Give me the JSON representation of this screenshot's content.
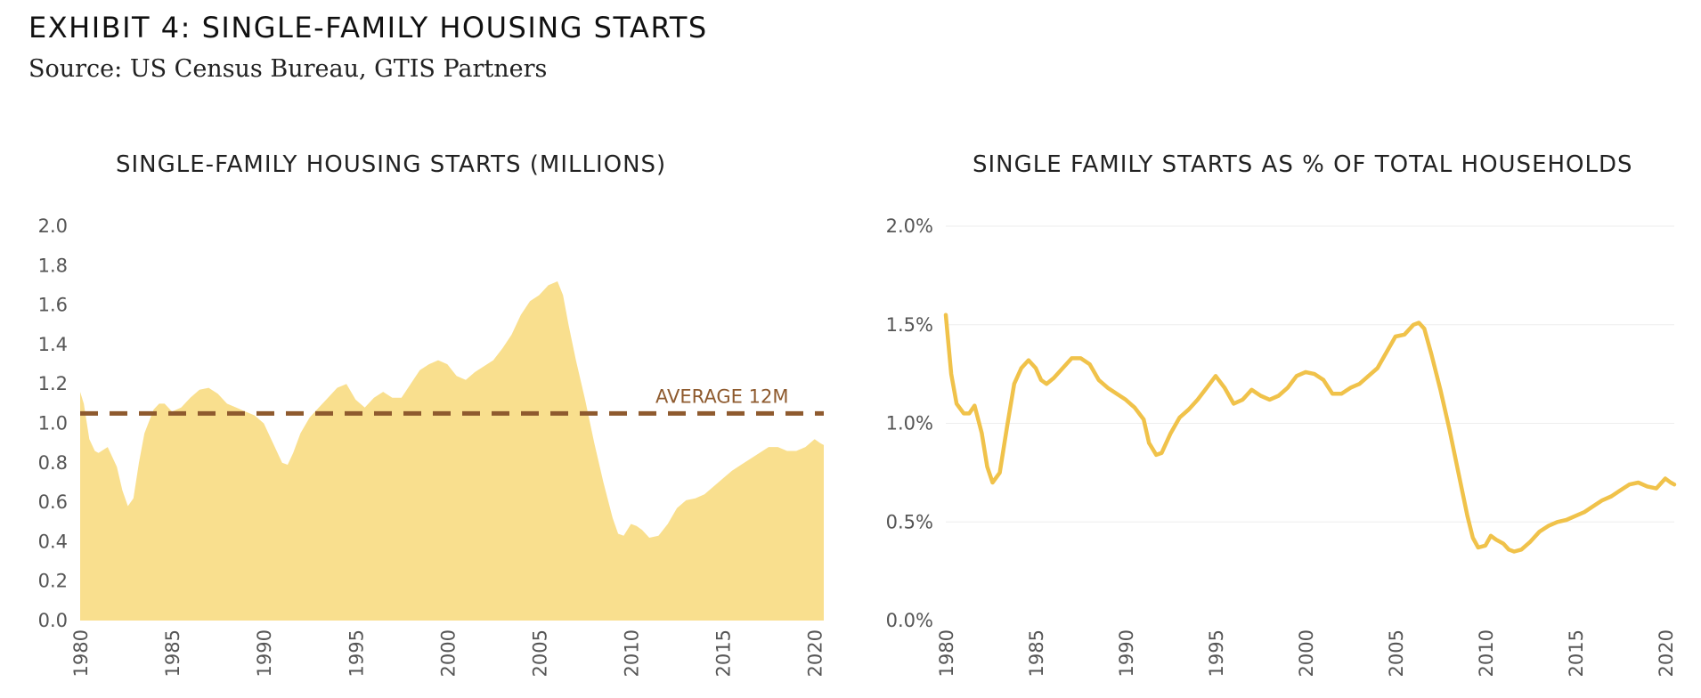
{
  "header": {
    "title": "EXHIBIT 4: SINGLE-FAMILY HOUSING STARTS",
    "source": "Source: US Census Bureau, GTIS Partners"
  },
  "colors": {
    "area_fill": "#f9df8e",
    "line": "#f0c24a",
    "average_line": "#8e5a2e",
    "grid": "#eeeeee",
    "tick_text": "#555555"
  },
  "chart_data": [
    {
      "type": "area",
      "title": "SINGLE-FAMILY HOUSING STARTS (MILLIONS)",
      "xlabel": "",
      "ylabel": "",
      "xlim": [
        1980,
        2020.5
      ],
      "ylim": [
        0,
        2.0
      ],
      "x_ticks": [
        "1980",
        "1985",
        "1990",
        "1995",
        "2000",
        "2005",
        "2010",
        "2015",
        "2020"
      ],
      "y_ticks": [
        "0.0",
        "0.2",
        "0.4",
        "0.6",
        "0.8",
        "1.0",
        "1.2",
        "1.4",
        "1.6",
        "1.8",
        "2.0"
      ],
      "grid": false,
      "reference_line": {
        "label": "AVERAGE 12M",
        "value": 1.05
      },
      "series": [
        {
          "x": [
            1980,
            1980.2,
            1980.5,
            1980.8,
            1981,
            1981.5,
            1982,
            1982.3,
            1982.6,
            1982.9,
            1983.2,
            1983.5,
            1984,
            1984.3,
            1984.6,
            1985,
            1985.5,
            1986,
            1986.5,
            1987,
            1987.5,
            1988,
            1988.5,
            1989,
            1989.5,
            1990,
            1990.5,
            1991,
            1991.3,
            1991.6,
            1992,
            1992.5,
            1993,
            1993.5,
            1994,
            1994.5,
            1995,
            1995.5,
            1996,
            1996.5,
            1997,
            1997.5,
            1998,
            1998.5,
            1999,
            1999.5,
            2000,
            2000.5,
            2001,
            2001.5,
            2002,
            2002.5,
            2003,
            2003.5,
            2004,
            2004.5,
            2005,
            2005.5,
            2006,
            2006.3,
            2006.6,
            2007,
            2007.5,
            2008,
            2008.5,
            2009,
            2009.3,
            2009.6,
            2010,
            2010.3,
            2010.6,
            2011,
            2011.5,
            2012,
            2012.5,
            2013,
            2013.5,
            2014,
            2014.5,
            2015,
            2015.5,
            2016,
            2016.5,
            2017,
            2017.5,
            2018,
            2018.5,
            2019,
            2019.5,
            2020,
            2020.3,
            2020.5
          ],
          "values": [
            1.16,
            1.1,
            0.92,
            0.86,
            0.85,
            0.88,
            0.78,
            0.66,
            0.58,
            0.62,
            0.8,
            0.95,
            1.07,
            1.1,
            1.1,
            1.06,
            1.08,
            1.13,
            1.17,
            1.18,
            1.15,
            1.1,
            1.08,
            1.06,
            1.04,
            1.0,
            0.9,
            0.8,
            0.79,
            0.85,
            0.95,
            1.03,
            1.08,
            1.13,
            1.18,
            1.2,
            1.12,
            1.08,
            1.13,
            1.16,
            1.13,
            1.13,
            1.2,
            1.27,
            1.3,
            1.32,
            1.3,
            1.24,
            1.22,
            1.26,
            1.29,
            1.32,
            1.38,
            1.45,
            1.55,
            1.62,
            1.65,
            1.7,
            1.72,
            1.65,
            1.5,
            1.32,
            1.12,
            0.9,
            0.7,
            0.52,
            0.44,
            0.43,
            0.49,
            0.48,
            0.46,
            0.42,
            0.43,
            0.49,
            0.57,
            0.61,
            0.62,
            0.64,
            0.68,
            0.72,
            0.76,
            0.79,
            0.82,
            0.85,
            0.88,
            0.88,
            0.86,
            0.86,
            0.88,
            0.92,
            0.9,
            0.89
          ]
        }
      ]
    },
    {
      "type": "line",
      "title": "SINGLE FAMILY STARTS AS % OF TOTAL HOUSEHOLDS",
      "xlabel": "",
      "ylabel": "",
      "xlim": [
        1980,
        2020.5
      ],
      "ylim": [
        0,
        2.0
      ],
      "x_ticks": [
        "1980",
        "1985",
        "1990",
        "1995",
        "2000",
        "2005",
        "2010",
        "2015",
        "2020"
      ],
      "y_ticks": [
        "0.0%",
        "0.5%",
        "1.0%",
        "1.5%",
        "2.0%"
      ],
      "grid": true,
      "series": [
        {
          "x": [
            1980,
            1980.1,
            1980.3,
            1980.6,
            1981,
            1981.3,
            1981.6,
            1982,
            1982.3,
            1982.6,
            1983,
            1983.4,
            1983.8,
            1984.2,
            1984.6,
            1985,
            1985.3,
            1985.6,
            1986,
            1986.5,
            1987,
            1987.5,
            1988,
            1988.5,
            1989,
            1989.5,
            1990,
            1990.5,
            1991,
            1991.3,
            1991.7,
            1992,
            1992.5,
            1993,
            1993.5,
            1994,
            1994.5,
            1995,
            1995.5,
            1996,
            1996.5,
            1997,
            1997.5,
            1998,
            1998.5,
            1999,
            1999.5,
            2000,
            2000.5,
            2001,
            2001.5,
            2002,
            2002.5,
            2003,
            2003.5,
            2004,
            2004.5,
            2005,
            2005.5,
            2006,
            2006.3,
            2006.6,
            2007,
            2007.5,
            2008,
            2008.5,
            2009,
            2009.3,
            2009.6,
            2010,
            2010.3,
            2010.6,
            2011,
            2011.3,
            2011.6,
            2012,
            2012.5,
            2013,
            2013.5,
            2014,
            2014.5,
            2015,
            2015.5,
            2016,
            2016.5,
            2017,
            2017.5,
            2018,
            2018.5,
            2019,
            2019.5,
            2020,
            2020.3,
            2020.5
          ],
          "values": [
            1.55,
            1.45,
            1.25,
            1.1,
            1.05,
            1.05,
            1.09,
            0.95,
            0.78,
            0.7,
            0.75,
            0.98,
            1.2,
            1.28,
            1.32,
            1.28,
            1.22,
            1.2,
            1.23,
            1.28,
            1.33,
            1.33,
            1.3,
            1.22,
            1.18,
            1.15,
            1.12,
            1.08,
            1.02,
            0.9,
            0.84,
            0.85,
            0.95,
            1.03,
            1.07,
            1.12,
            1.18,
            1.24,
            1.18,
            1.1,
            1.12,
            1.17,
            1.14,
            1.12,
            1.14,
            1.18,
            1.24,
            1.26,
            1.25,
            1.22,
            1.15,
            1.15,
            1.18,
            1.2,
            1.24,
            1.28,
            1.36,
            1.44,
            1.45,
            1.5,
            1.51,
            1.48,
            1.35,
            1.17,
            0.97,
            0.75,
            0.53,
            0.42,
            0.37,
            0.38,
            0.43,
            0.41,
            0.39,
            0.36,
            0.35,
            0.36,
            0.4,
            0.45,
            0.48,
            0.5,
            0.51,
            0.53,
            0.55,
            0.58,
            0.61,
            0.63,
            0.66,
            0.69,
            0.7,
            0.68,
            0.67,
            0.72,
            0.7,
            0.69
          ]
        }
      ]
    }
  ]
}
